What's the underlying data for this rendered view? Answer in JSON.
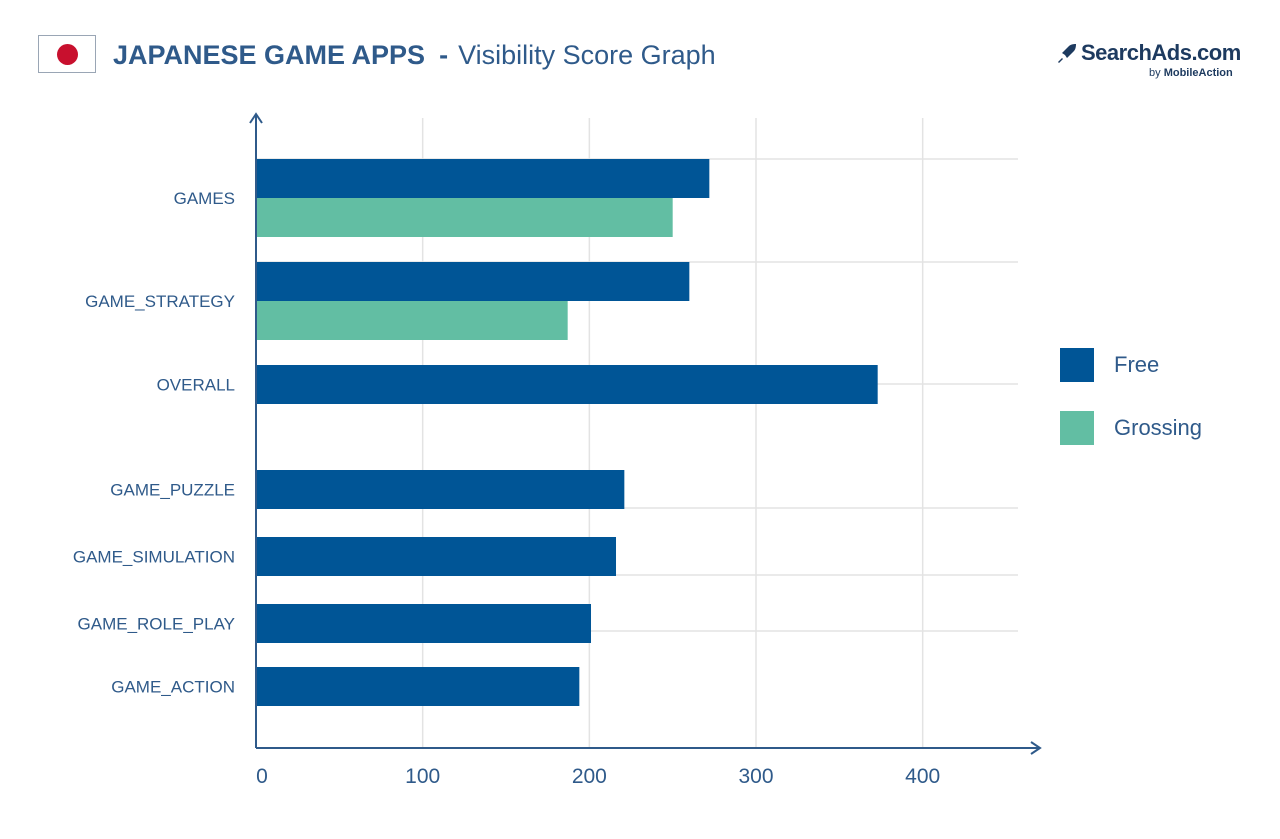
{
  "header": {
    "title_strong": "JAPANESE GAME APPS",
    "dash": "-",
    "title_light": "Visibility Score Graph",
    "flag_icon": "japan-flag-icon",
    "flag_color": "#c8102e"
  },
  "brand": {
    "name": "SearchAds.com",
    "sub_prefix": "by",
    "sub_name": "MobileAction",
    "icon": "rocket-icon"
  },
  "colors": {
    "free": "#005596",
    "grossing": "#62bea3",
    "text": "#2f5a8a",
    "grid": "#e3e3e3",
    "axis": "#2f5a8a"
  },
  "chart_data": {
    "type": "bar",
    "orientation": "horizontal",
    "title": "JAPANESE GAME APPS - Visibility Score Graph",
    "categories": [
      "GAMES",
      "GAME_STRATEGY",
      "OVERALL",
      "GAME_PUZZLE",
      "GAME_SIMULATION",
      "GAME_ROLE_PLAY",
      "GAME_ACTION"
    ],
    "series": [
      {
        "name": "Free",
        "color": "#005596",
        "values": [
          272,
          260,
          373,
          221,
          216,
          201,
          194
        ]
      },
      {
        "name": "Grossing",
        "color": "#62bea3",
        "values": [
          250,
          187,
          null,
          null,
          null,
          null,
          null
        ]
      }
    ],
    "xlim": [
      0,
      450
    ],
    "xticks": [
      0,
      100,
      200,
      300,
      400
    ],
    "xtick_labels": [
      "0",
      "100",
      "200",
      "300",
      "400"
    ],
    "xlabel": "",
    "ylabel": "",
    "grid": true,
    "legend_position": "right"
  }
}
